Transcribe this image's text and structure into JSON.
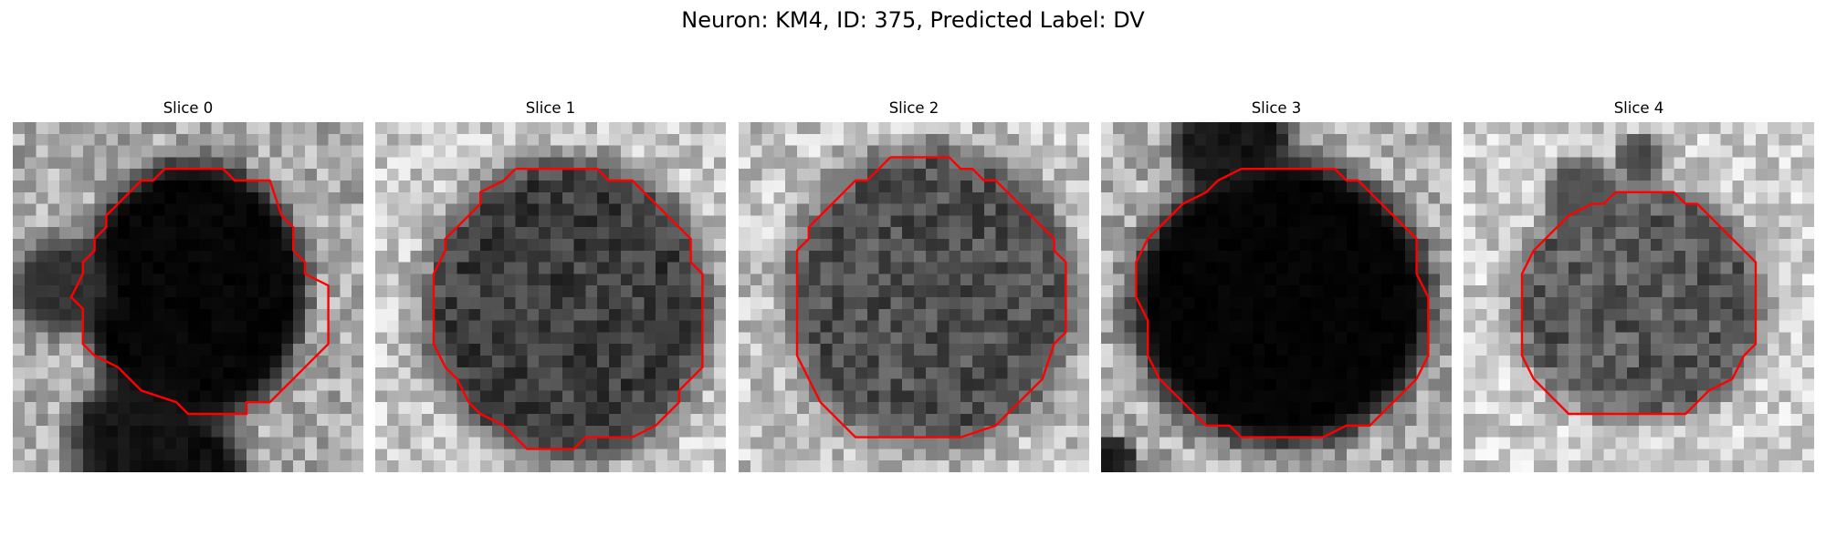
{
  "title": "Neuron: KM4, ID: 375, Predicted Label: DV",
  "panels": [
    {
      "title": "Slice 0",
      "description": "dark elongated cell body with dark tail below; red contour"
    },
    {
      "title": "Slice 1",
      "description": "medium gray textured round cell; red contour"
    },
    {
      "title": "Slice 2",
      "description": "medium gray textured round cell; red contour"
    },
    {
      "title": "Slice 3",
      "description": "uniformly black round cell; red contour"
    },
    {
      "title": "Slice 4",
      "description": "smaller gray cell with lighter surround; red contour"
    }
  ],
  "colors": {
    "contour": "#ff0000",
    "background": "#ffffff"
  }
}
